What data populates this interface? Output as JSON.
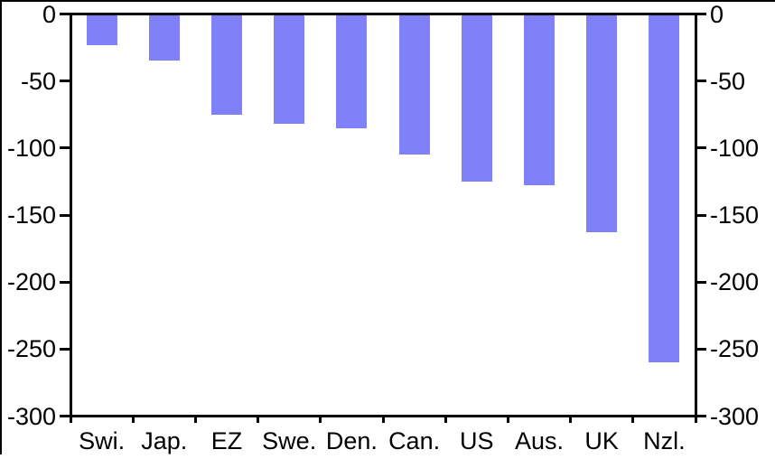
{
  "chart_data": {
    "type": "bar",
    "categories": [
      "Swi.",
      "Jap.",
      "EZ",
      "Swe.",
      "Den.",
      "Can.",
      "US",
      "Aus.",
      "UK",
      "Nzl."
    ],
    "values": [
      -23,
      -35,
      -75,
      -82,
      -85,
      -105,
      -125,
      -128,
      -163,
      -260
    ],
    "title": "",
    "xlabel": "",
    "ylabel": "",
    "ylim": [
      -300,
      0
    ],
    "yticks": [
      0,
      -50,
      -100,
      -150,
      -200,
      -250,
      -300
    ],
    "ytick_labels": [
      "0",
      "-50",
      "-100",
      "-150",
      "-200",
      "-250",
      "-300"
    ],
    "right_axis_mirror": true,
    "grid": false,
    "legend_position": "none",
    "bar_color": "#8080F8",
    "axis_color": "#000000",
    "text_color": "#000000"
  }
}
